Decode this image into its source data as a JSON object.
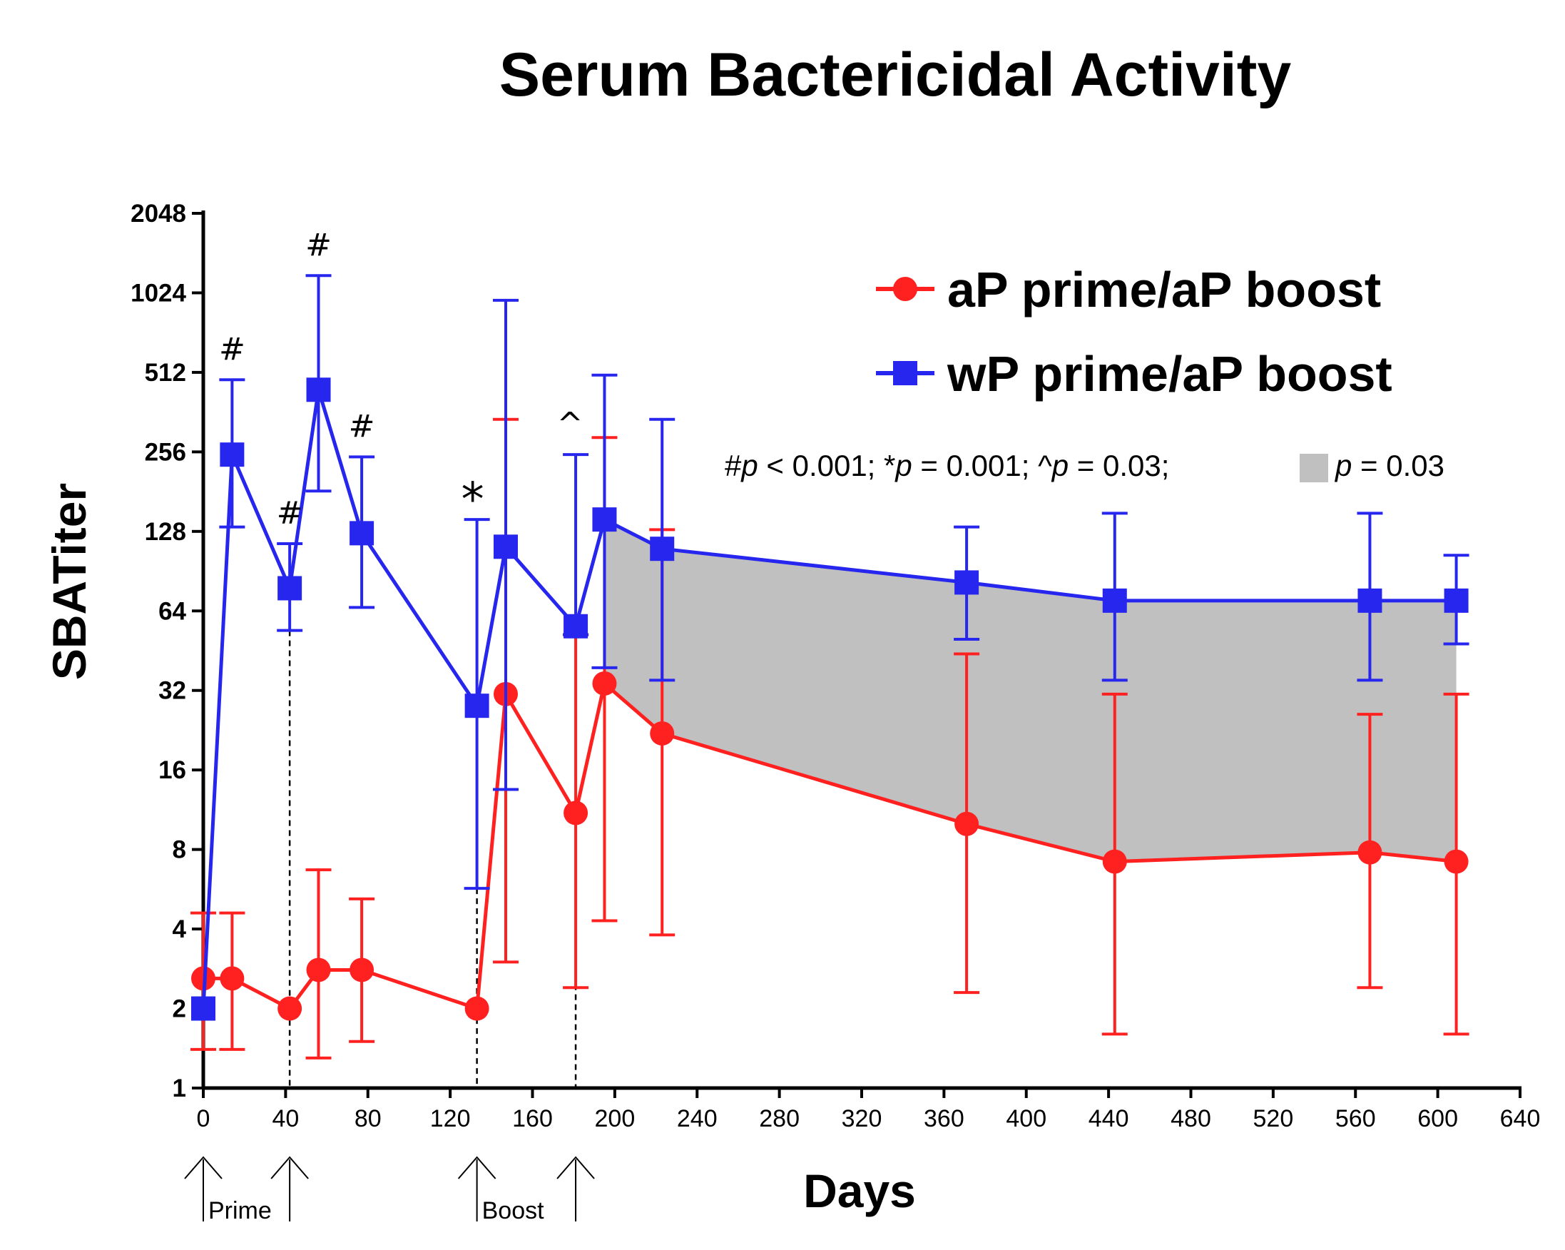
{
  "chart_data": {
    "type": "line",
    "title": "Serum Bactericidal Activity",
    "xlabel": "Days",
    "ylabel": "SBATiter",
    "yscale": "log2",
    "ylim": [
      1,
      2048
    ],
    "xlim": [
      0,
      640
    ],
    "xticks": [
      "0",
      "40",
      "80",
      "120",
      "160",
      "200",
      "240",
      "280",
      "320",
      "360",
      "400",
      "440",
      "480",
      "520",
      "560",
      "600",
      "640"
    ],
    "yticks": [
      "1",
      "2",
      "4",
      "8",
      "16",
      "32",
      "64",
      "128",
      "256",
      "512",
      "1024",
      "2048"
    ],
    "series": [
      {
        "name": "aP prime/aP boost",
        "color": "#ff2020",
        "marker": "circle",
        "x": [
          0,
          14,
          42,
          56,
          77,
          133,
          147,
          181,
          195,
          223,
          371,
          443,
          567,
          609
        ],
        "y": [
          2.6,
          2.6,
          2.0,
          2.8,
          2.8,
          2.0,
          31,
          11,
          34,
          22,
          10,
          7.2,
          7.8,
          7.2
        ],
        "err_low": [
          1.4,
          1.4,
          2.0,
          1.3,
          1.5,
          2.0,
          3.0,
          2.4,
          4.3,
          3.8,
          2.3,
          1.6,
          2.4,
          1.6
        ],
        "err_high": [
          4.6,
          4.6,
          2.0,
          6.7,
          5.2,
          2.0,
          340,
          52,
          290,
          130,
          44,
          31,
          26,
          31
        ]
      },
      {
        "name": "wP prime/aP boost",
        "color": "#2626ee",
        "marker": "square",
        "x": [
          0,
          14,
          42,
          56,
          77,
          133,
          147,
          181,
          195,
          223,
          371,
          443,
          567,
          609
        ],
        "y": [
          2.0,
          250,
          78,
          440,
          126,
          28,
          112,
          56,
          142,
          110,
          82,
          70,
          70,
          70
        ],
        "err_low": [
          2.0,
          133,
          54,
          182,
          66,
          5.7,
          13.5,
          52,
          39,
          35,
          50,
          35,
          35,
          48
        ],
        "err_high": [
          2.0,
          480,
          115,
          1190,
          245,
          142,
          960,
          250,
          500,
          340,
          133,
          150,
          150,
          104
        ]
      }
    ],
    "shaded_region": {
      "x_from": 195,
      "x_to": 609,
      "between_series": [
        "aP prime/aP boost",
        "wP prime/aP boost"
      ],
      "color": "#c0c0c0"
    },
    "annotations": [
      {
        "text": "#",
        "x": 14,
        "anchor_y": 480
      },
      {
        "text": "#",
        "x": 42,
        "anchor_y": 115
      },
      {
        "text": "#",
        "x": 56,
        "anchor_y": 1190
      },
      {
        "text": "#",
        "x": 77,
        "anchor_y": 245
      },
      {
        "text": "*",
        "x": 133,
        "anchor_y": 142
      },
      {
        "text": "^",
        "x": 181,
        "anchor_y": 250
      }
    ],
    "vaccination_days": [
      0,
      42,
      133,
      181
    ],
    "schedule_labels": [
      {
        "text": "Prime",
        "x": 0
      },
      {
        "text": "Boost",
        "x": 133
      }
    ],
    "significance_note": {
      "hash_prefix": "#",
      "hash_p": "p",
      "hash_val": " < 0.001; ",
      "star_prefix": "*",
      "star_p": "p",
      "star_val": " = 0.001; ",
      "caret_prefix": "^",
      "caret_p": "p",
      "caret_val": " = 0.03; ",
      "box_p": "p",
      "box_val": " = 0.03"
    },
    "legend_position": "top-right"
  }
}
